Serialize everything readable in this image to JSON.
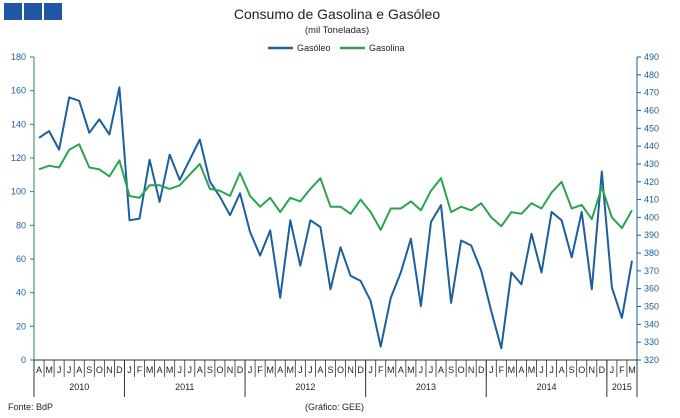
{
  "chart_data": {
    "type": "line",
    "title": "Consumo de Gasolina e Gasóleo",
    "subtitle": "(mil Toneladas)",
    "legend_position": "top-center",
    "grid": false,
    "left_axis": {
      "min": 0,
      "max": 180,
      "ticks": [
        "0",
        "20",
        "40",
        "60",
        "80",
        "100",
        "120",
        "140",
        "160",
        "180"
      ],
      "color": "#1a5f99"
    },
    "right_axis": {
      "min": 320,
      "max": 490,
      "ticks": [
        "320",
        "330",
        "340",
        "350",
        "360",
        "370",
        "380",
        "390",
        "400",
        "410",
        "420",
        "430",
        "440",
        "450",
        "460",
        "470",
        "480",
        "490"
      ],
      "color": "#1a5f99"
    },
    "month_labels": [
      "A",
      "M",
      "J",
      "J",
      "A",
      "S",
      "O",
      "N",
      "D",
      "J",
      "F",
      "M",
      "A",
      "M",
      "J",
      "J",
      "A",
      "S",
      "O",
      "N",
      "D",
      "J",
      "F",
      "M",
      "A",
      "M",
      "J",
      "J",
      "A",
      "S",
      "O",
      "N",
      "D",
      "J",
      "F",
      "M",
      "A",
      "M",
      "J",
      "J",
      "A",
      "S",
      "O",
      "N",
      "D",
      "J",
      "F",
      "M",
      "A",
      "M",
      "J",
      "J",
      "A",
      "S",
      "O",
      "N",
      "D",
      "J",
      "F",
      "M"
    ],
    "year_labels": [
      "2010",
      "2011",
      "2012",
      "2013",
      "2014",
      "2015"
    ],
    "series": [
      {
        "name": "Gasóleo",
        "axis": "left",
        "color": "#1c5f9e",
        "values": [
          132,
          136,
          125,
          156,
          154,
          135,
          143,
          134,
          162,
          83,
          84,
          119,
          94,
          122,
          107,
          119,
          131,
          106,
          97,
          86,
          99,
          76,
          62,
          77,
          37,
          83,
          56,
          83,
          79,
          42,
          67,
          50,
          47,
          35,
          8,
          37,
          52,
          72,
          32,
          82,
          92,
          34,
          71,
          68,
          53,
          29,
          7,
          52,
          45,
          75,
          52,
          88,
          83,
          61,
          88,
          42,
          112,
          43,
          25,
          59
        ]
      },
      {
        "name": "Gasolina",
        "axis": "right",
        "color": "#2aa44e",
        "values": [
          427,
          429,
          428,
          438,
          441,
          428,
          427,
          423,
          432,
          412,
          411,
          418,
          418,
          416,
          418,
          424,
          430,
          416,
          415,
          412,
          425,
          412,
          406,
          411,
          403,
          411,
          409,
          416,
          422,
          406,
          406,
          402,
          410,
          403,
          393,
          405,
          405,
          409,
          404,
          415,
          422,
          403,
          406,
          404,
          408,
          400,
          395,
          403,
          402,
          408,
          405,
          414,
          420,
          405,
          407,
          399,
          417,
          400,
          394,
          404
        ]
      }
    ]
  },
  "footer": {
    "source": "Fonte: BdP",
    "credit": "(Gráfico: GEE)"
  },
  "logo": {
    "color": "#1f57a5"
  }
}
